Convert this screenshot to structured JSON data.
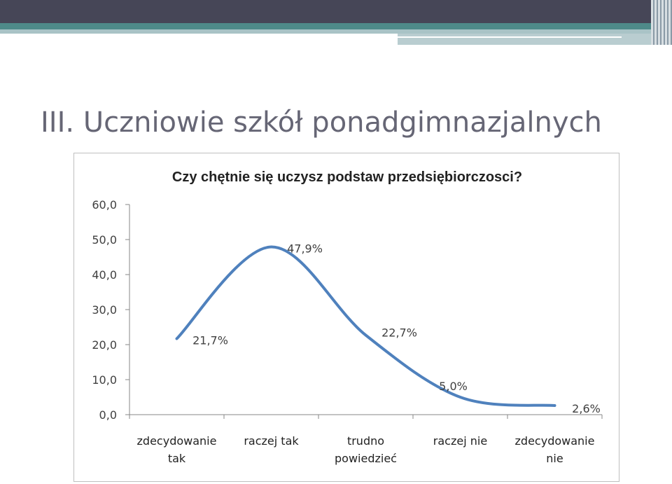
{
  "slide": {
    "title": "III. Uczniowie szkół ponadgimnazjalnych"
  },
  "chart_data": {
    "type": "line",
    "title": "Czy chętnie się uczysz podstaw przedsiębiorczosci?",
    "categories": [
      [
        "zdecydowanie",
        "tak"
      ],
      [
        "raczej tak"
      ],
      [
        "trudno",
        "powiedzieć"
      ],
      [
        "raczej nie"
      ],
      [
        "zdecydowanie",
        "nie"
      ]
    ],
    "values": [
      21.7,
      47.9,
      22.7,
      5.0,
      2.6
    ],
    "data_labels": [
      "21,7%",
      "47,9%",
      "22,7%",
      "5,0%",
      "2,6%"
    ],
    "y_ticks": [
      "0,0",
      "10,0",
      "20,0",
      "30,0",
      "40,0",
      "50,0",
      "60,0"
    ],
    "ylim": [
      0,
      60
    ],
    "smoothed": true,
    "grid": false,
    "line_color": "#4f81bd"
  }
}
